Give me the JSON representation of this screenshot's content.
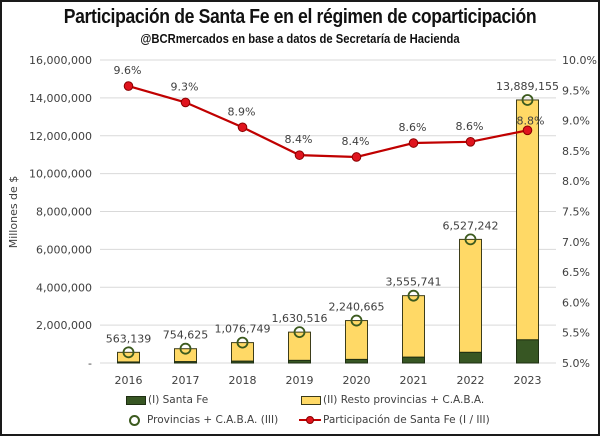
{
  "chart_data": {
    "type": "bar",
    "title": "Participación de Santa Fe en el régimen de coparticipación",
    "subtitle": "@BCRmercados en base a datos de Secretaría de Hacienda",
    "ylabel": "Millones de $",
    "y2label": "",
    "xlabel": "",
    "categories": [
      "2016",
      "2017",
      "2018",
      "2019",
      "2020",
      "2021",
      "2022",
      "2023"
    ],
    "ylim": [
      0,
      16000000
    ],
    "y2lim": [
      0.05,
      0.1
    ],
    "yticks": [
      0,
      2000000,
      4000000,
      6000000,
      8000000,
      10000000,
      12000000,
      14000000,
      16000000
    ],
    "ytick_labels": [
      "-",
      "2,000,000",
      "4,000,000",
      "6,000,000",
      "8,000,000",
      "10,000,000",
      "12,000,000",
      "14,000,000",
      "16,000,000"
    ],
    "y2ticks": [
      0.05,
      0.055,
      0.06,
      0.065,
      0.07,
      0.075,
      0.08,
      0.085,
      0.09,
      0.095,
      0.1
    ],
    "y2tick_labels": [
      "5.0%",
      "5.5%",
      "6.0%",
      "6.5%",
      "7.0%",
      "7.5%",
      "8.0%",
      "8.5%",
      "9.0%",
      "9.5%",
      "10.0%"
    ],
    "grid": true,
    "legend_position": "bottom",
    "series": [
      {
        "name": "(I) Santa Fe",
        "kind": "stacked-bar",
        "axis": "left",
        "color": "#375623",
        "values": [
          54061,
          70180,
          95831,
          136963,
          188216,
          305794,
          561343,
          1222246
        ]
      },
      {
        "name": "(II) Resto provincias + C.A.B.A.",
        "kind": "stacked-bar",
        "axis": "left",
        "color": "#FFD966",
        "values": [
          509078,
          684445,
          980918,
          1493553,
          2052449,
          3249947,
          5965899,
          12666909
        ]
      },
      {
        "name": "Provincias + C.A.B.A. (III)",
        "kind": "marker",
        "axis": "left",
        "color": "#3c5a1e",
        "values": [
          563139,
          754625,
          1076749,
          1630516,
          2240665,
          3555741,
          6527242,
          13889155
        ],
        "labels": [
          "563,139",
          "754,625",
          "1,076,749",
          "1,630,516",
          "2,240,665",
          "3,555,741",
          "6,527,242",
          "13,889,155"
        ]
      },
      {
        "name": "Participación de Santa Fe (I / III)",
        "kind": "line",
        "axis": "right",
        "color": "#C00000",
        "values": [
          0.0957,
          0.093,
          0.0889,
          0.0843,
          0.084,
          0.0863,
          0.0865,
          0.0884
        ],
        "labels": [
          "9.6%",
          "9.3%",
          "8.9%",
          "8.4%",
          "8.4%",
          "8.6%",
          "8.6%",
          "8.8%"
        ]
      }
    ]
  },
  "legend": {
    "santa_fe": "(I) Santa Fe",
    "resto": "(II) Resto provincias + C.A.B.A.",
    "total": "Provincias + C.A.B.A. (III)",
    "participacion": "Participación de Santa Fe (I / III)"
  }
}
